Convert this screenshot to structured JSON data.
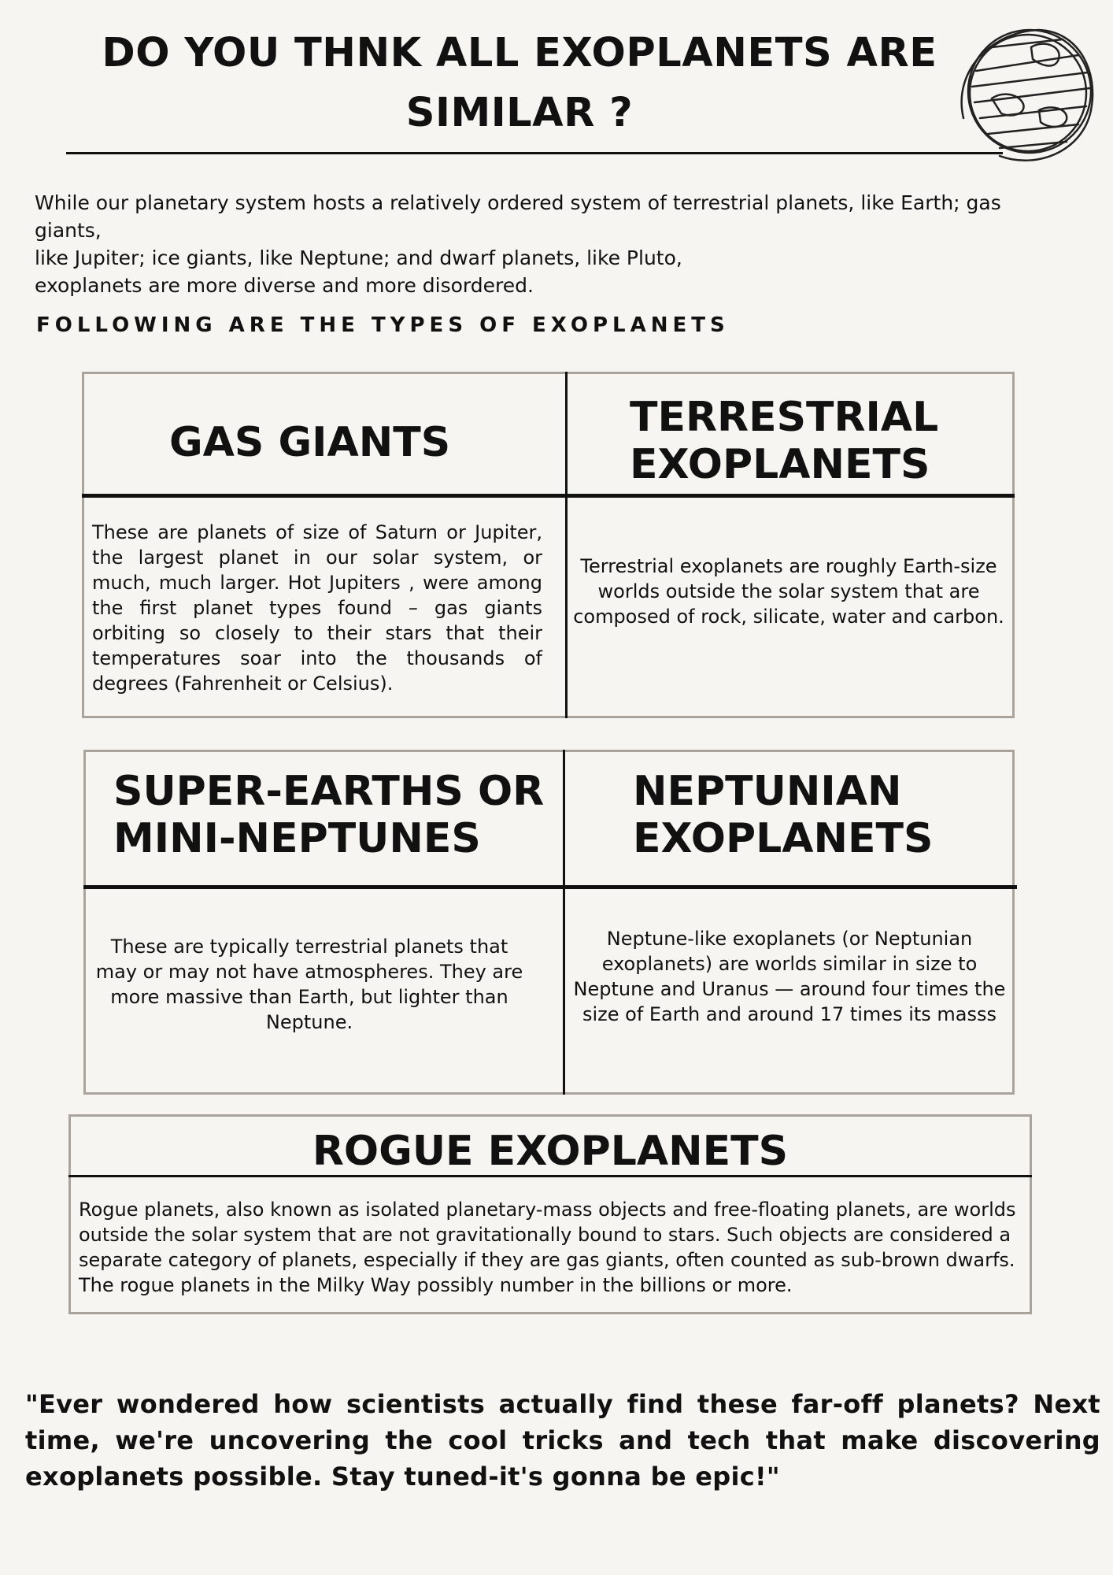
{
  "header": {
    "title_line1": "DO YOU THNK ALL EXOPLANETS ARE",
    "title_line2": "SIMILAR ?",
    "globe_icon": "hand-drawn-globe-icon"
  },
  "intro": {
    "line1": "While our planetary system hosts a relatively ordered system of terrestrial planets, like Earth; gas giants,",
    "line2": "like Jupiter; ice giants, like Neptune; and dwarf planets, like Pluto,",
    "line3": "exoplanets are more diverse and more disordered."
  },
  "subheading": "FOLLOWING ARE THE TYPES OF EXOPLANETS",
  "types": {
    "gas_giants": {
      "title": "GAS GIANTS",
      "text": "These are planets of size of Saturn or Jupiter, the largest planet in our solar system, or much, much larger. Hot Jupiters , were among the first planet types found – gas giants orbiting so closely to their stars that their temperatures soar into the thousands of degrees (Fahrenheit or Celsius)."
    },
    "terrestrial": {
      "title_line1": "TERRESTRIAL",
      "title_line2": "EXOPLANETS",
      "text": "Terrestrial exoplanets are roughly Earth-size worlds outside the solar system that are composed of rock, silicate, water and carbon."
    },
    "super_earths": {
      "title_line1": "SUPER-EARTHS OR",
      "title_line2": "MINI-NEPTUNES",
      "text": "These are typically terrestrial planets that may or may not have atmospheres. They are more massive than Earth, but lighter than Neptune."
    },
    "neptunian": {
      "title_line1": "NEPTUNIAN",
      "title_line2": "EXOPLANETS",
      "text": "Neptune-like exoplanets (or Neptunian exoplanets) are worlds similar in size to Neptune and Uranus — around four times the size of Earth and around 17 times its masss"
    },
    "rogue": {
      "title": "ROGUE EXOPLANETS",
      "text": "Rogue planets, also known as isolated planetary-mass objects and free-floating planets, are worlds outside the solar system that are not gravitationally bound to stars. Such objects are considered a separate category of planets, especially if they are gas giants, often counted as sub-brown dwarfs. The rogue planets in the Milky Way possibly number in the billions or more."
    }
  },
  "closing_quote": "\"Ever wondered how scientists actually find these far-off planets? Next time, we're uncovering the cool tricks and tech that make discovering exoplanets possible. Stay tuned-it's gonna be epic!\""
}
